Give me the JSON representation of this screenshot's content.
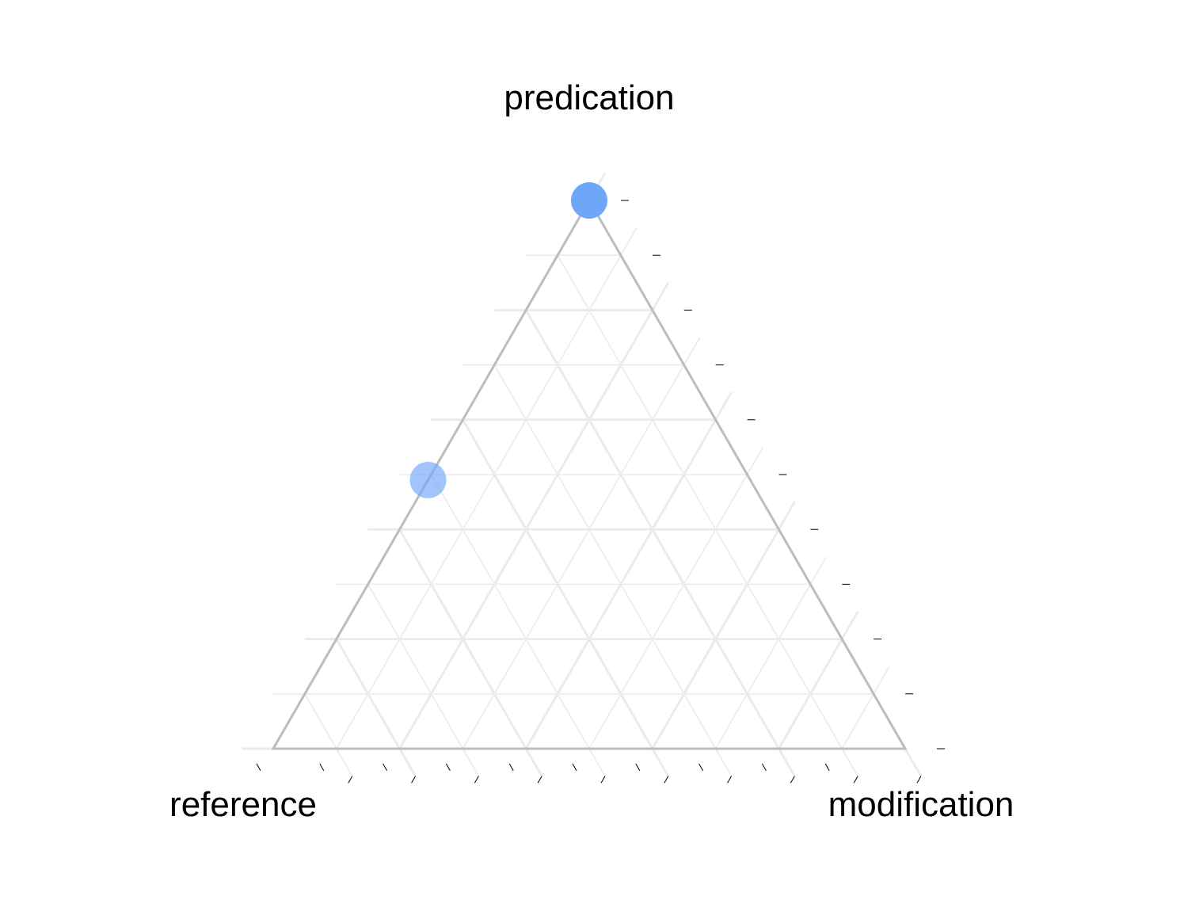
{
  "chart_data": {
    "type": "ternary-scatter",
    "title": "",
    "axes": {
      "top": "predication",
      "left": "reference",
      "right": "modification"
    },
    "axis_range": [
      0,
      1
    ],
    "grid": true,
    "grid_step": 0.1,
    "tick_labels": "none",
    "points": [
      {
        "predication": 1.0,
        "reference": 0.0,
        "modification": 0.0,
        "color": "#6EA6F8",
        "opacity": 1.0
      },
      {
        "predication": 0.49,
        "reference": 0.51,
        "modification": 0.0,
        "color": "#6EA6F8",
        "opacity": 0.65
      }
    ],
    "colors": {
      "point": "#6EA6F8",
      "frame": "#BDBDBD",
      "grid": "#EBEBEB",
      "tick": "#000000",
      "text": "#000000"
    }
  }
}
